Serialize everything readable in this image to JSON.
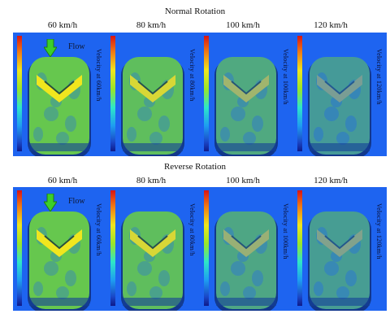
{
  "sections": [
    {
      "title": "Normal Rotation",
      "flow_label": "Flow",
      "panels": [
        {
          "speed": "60 km/h",
          "velocity_label": "Velocity at 60km/h",
          "intensity": 1.0
        },
        {
          "speed": "80 km/h",
          "velocity_label": "Velocity at 80km/h",
          "intensity": 0.85
        },
        {
          "speed": "100 km/h",
          "velocity_label": "Velocity at 100km/h",
          "intensity": 0.5
        },
        {
          "speed": "120 km/h",
          "velocity_label": "Velocity at 120km/h",
          "intensity": 0.25
        }
      ]
    },
    {
      "title": "Reverse Rotation",
      "flow_label": "Flow",
      "panels": [
        {
          "speed": "60 km/h",
          "velocity_label": "Velocity at 60km/h",
          "intensity": 1.0
        },
        {
          "speed": "80 km/h",
          "velocity_label": "Velocity at 80km/h",
          "intensity": 0.85
        },
        {
          "speed": "100 km/h",
          "velocity_label": "Velocity at 100km/h",
          "intensity": 0.45
        },
        {
          "speed": "120 km/h",
          "velocity_label": "Velocity at 120km/h",
          "intensity": 0.3
        }
      ]
    }
  ],
  "colors": {
    "background": "#1e64f0",
    "colorbar_top": "#d81414",
    "colorbar_bottom": "#0f1a8a",
    "arrow": "#3ccf2a",
    "tread_high": "#f0e61e",
    "tread_mid": "#6ed23c"
  }
}
